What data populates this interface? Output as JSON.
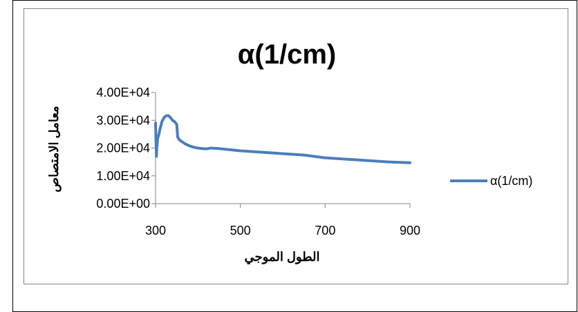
{
  "chart_data": {
    "type": "line",
    "title": "α(1/cm)",
    "xlabel": "الطول الموجي",
    "ylabel": "معامل الامتصاص",
    "xlim": [
      300,
      900
    ],
    "ylim": [
      0,
      40000
    ],
    "x_ticks": [
      300,
      500,
      700,
      900
    ],
    "x_tick_labels": [
      "300",
      "500",
      "700",
      "900"
    ],
    "y_ticks": [
      0,
      10000,
      20000,
      30000,
      40000
    ],
    "y_tick_labels": [
      "0.00E+00",
      "1.00E+04",
      "2.00E+04",
      "3.00E+04",
      "4.00E+04"
    ],
    "grid": false,
    "legend_position": "right",
    "colors": {
      "series": "#4a7ebb",
      "frame": "#868686",
      "axis": "#868686"
    },
    "series": [
      {
        "name": "α(1/cm)",
        "x": [
          300,
          301,
          302,
          303,
          305,
          308,
          310,
          315,
          320,
          325,
          330,
          335,
          340,
          345,
          350,
          352,
          354,
          356,
          360,
          365,
          370,
          380,
          390,
          400,
          410,
          420,
          430,
          450,
          500,
          550,
          600,
          650,
          700,
          750,
          800,
          850,
          900
        ],
        "y": [
          29000,
          22500,
          17000,
          20000,
          23500,
          25000,
          26500,
          29500,
          31000,
          31600,
          31700,
          31000,
          30000,
          29500,
          28500,
          24000,
          23500,
          23000,
          22500,
          22000,
          21500,
          20800,
          20300,
          20000,
          19800,
          19700,
          20000,
          19800,
          19000,
          18500,
          18000,
          17500,
          16500,
          16000,
          15500,
          15000,
          14700
        ]
      }
    ]
  }
}
